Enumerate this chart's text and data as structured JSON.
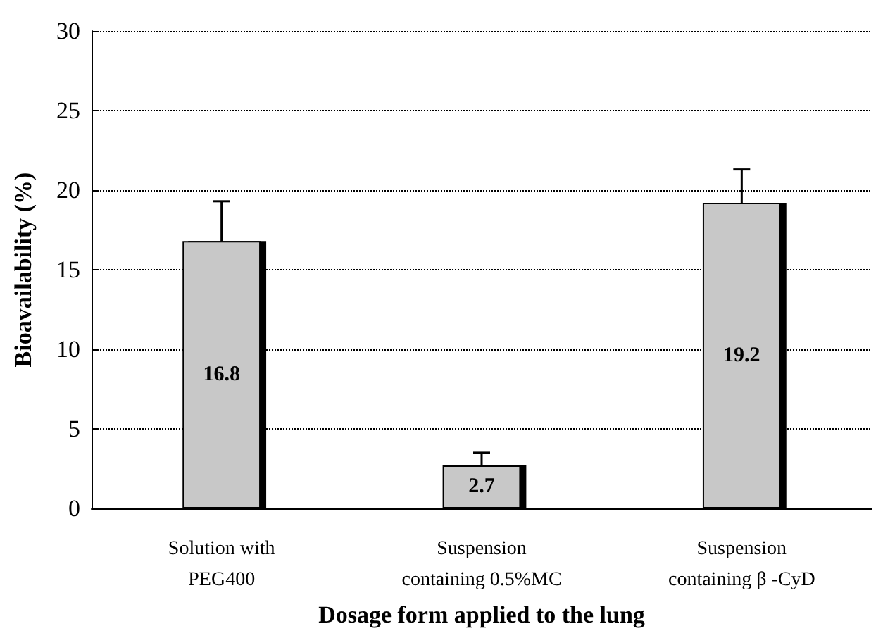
{
  "chart_data": {
    "type": "bar",
    "xlabel": "Dosage form applied to the lung",
    "ylabel": "Bioavailability (%)",
    "categories": [
      "Solution with\nPEG400",
      "Suspension\ncontaining 0.5%MC",
      "Suspension\ncontaining β -CyD"
    ],
    "values": [
      16.8,
      2.7,
      19.2
    ],
    "errors": [
      [
        16.8,
        19.3
      ],
      [
        2.7,
        3.5
      ],
      [
        19.2,
        21.3
      ]
    ],
    "color": "#c8c8c8",
    "data_labels": true,
    "ylim": [
      0,
      30
    ],
    "yticks": [
      0,
      5,
      10,
      15,
      20,
      25,
      30
    ],
    "grid": "y",
    "line_style": "dotted"
  }
}
